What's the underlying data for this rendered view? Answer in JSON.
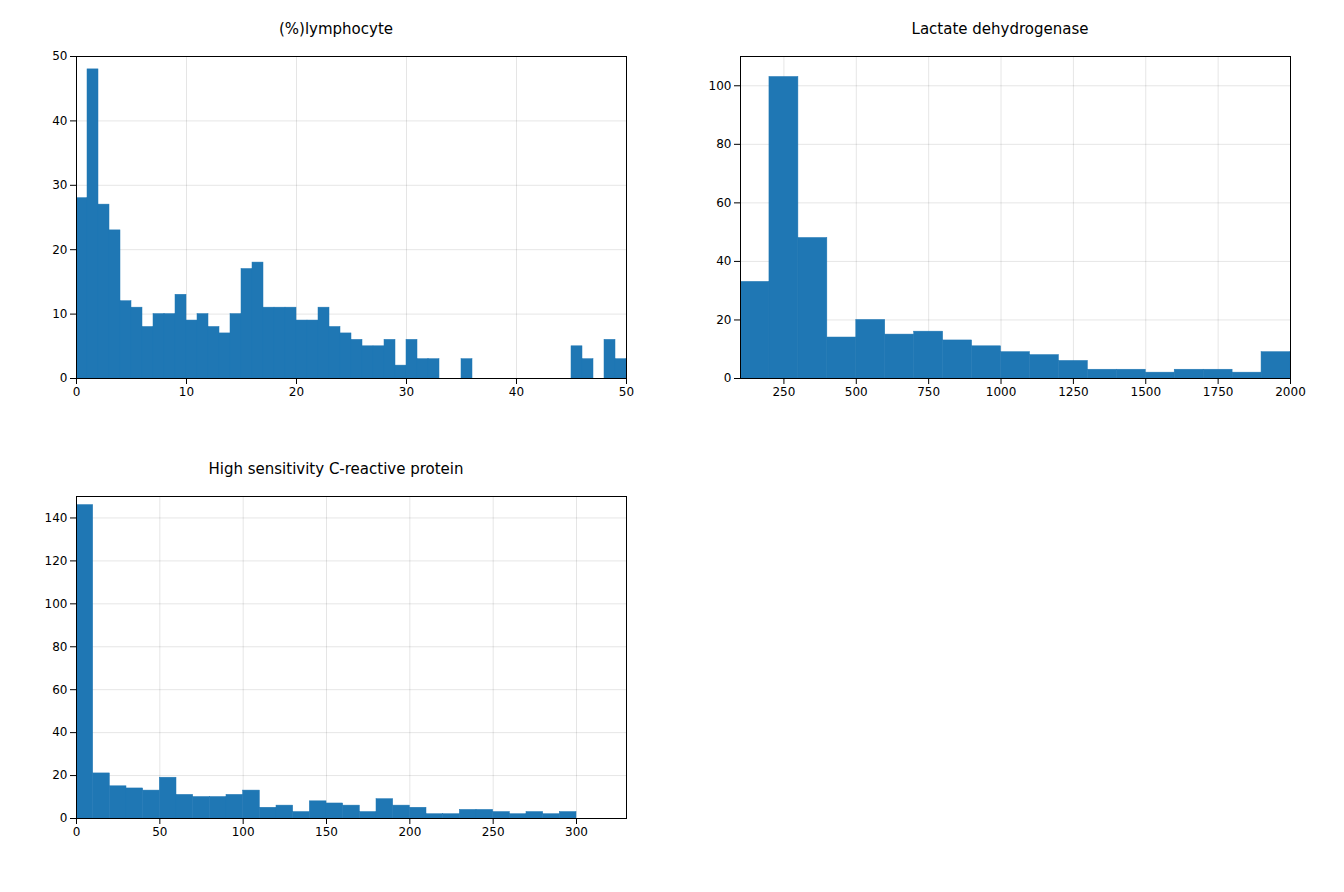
{
  "chart_data": [
    {
      "type": "histogram",
      "title": "(%)lymphocyte",
      "bins": [
        0,
        1,
        2,
        3,
        4,
        5,
        6,
        7,
        8,
        9,
        10,
        11,
        12,
        13,
        14,
        15,
        16,
        17,
        18,
        19,
        20,
        21,
        22,
        23,
        24,
        25,
        26,
        27,
        28,
        29,
        30,
        31,
        32,
        33,
        34,
        35,
        36,
        37,
        38,
        39,
        40,
        41,
        42,
        43,
        44,
        45,
        46,
        47,
        48,
        49,
        50
      ],
      "values": [
        28,
        48,
        27,
        23,
        12,
        11,
        8,
        10,
        10,
        13,
        9,
        10,
        8,
        7,
        10,
        17,
        18,
        11,
        11,
        11,
        9,
        9,
        11,
        8,
        7,
        6,
        5,
        5,
        6,
        2,
        6,
        3,
        3,
        0,
        0,
        3,
        0,
        0,
        0,
        0,
        0,
        0,
        0,
        0,
        0,
        5,
        3,
        0,
        6,
        3
      ],
      "color": "#1f77b4",
      "xlim": [
        0,
        50
      ],
      "xticks": [
        0,
        10,
        20,
        30,
        40,
        50
      ],
      "ylim": [
        0,
        50
      ],
      "yticks": [
        0,
        10,
        20,
        30,
        40,
        50
      ],
      "grid": true
    },
    {
      "type": "histogram",
      "title": "Lactate dehydrogenase",
      "bins": [
        100,
        200,
        300,
        400,
        500,
        600,
        700,
        800,
        900,
        1000,
        1100,
        1200,
        1300,
        1400,
        1500,
        1600,
        1700,
        1800,
        1900,
        2000
      ],
      "values": [
        33,
        103,
        48,
        14,
        20,
        15,
        16,
        13,
        11,
        9,
        8,
        6,
        3,
        3,
        2,
        3,
        3,
        2,
        9
      ],
      "color": "#1f77b4",
      "xlim": [
        100,
        2000
      ],
      "xticks": [
        250,
        500,
        750,
        1000,
        1250,
        1500,
        1750,
        2000
      ],
      "ylim": [
        0,
        110
      ],
      "yticks": [
        0,
        20,
        40,
        60,
        80,
        100
      ],
      "grid": true
    },
    {
      "type": "histogram",
      "title": "High sensitivity C-reactive protein",
      "bins": [
        0,
        10,
        20,
        30,
        40,
        50,
        60,
        70,
        80,
        90,
        100,
        110,
        120,
        130,
        140,
        150,
        160,
        170,
        180,
        190,
        200,
        210,
        220,
        230,
        240,
        250,
        260,
        270,
        280,
        290,
        300
      ],
      "values": [
        146,
        21,
        15,
        14,
        13,
        19,
        11,
        10,
        10,
        11,
        13,
        5,
        6,
        3,
        8,
        7,
        6,
        3,
        9,
        6,
        5,
        2,
        2,
        4,
        4,
        3,
        2,
        3,
        2,
        3
      ],
      "color": "#1f77b4",
      "xlim": [
        0,
        330
      ],
      "xticks": [
        0,
        50,
        100,
        150,
        200,
        250,
        300
      ],
      "ylim": [
        0,
        150
      ],
      "yticks": [
        0,
        20,
        40,
        60,
        80,
        100,
        120,
        140
      ],
      "grid": true
    }
  ]
}
